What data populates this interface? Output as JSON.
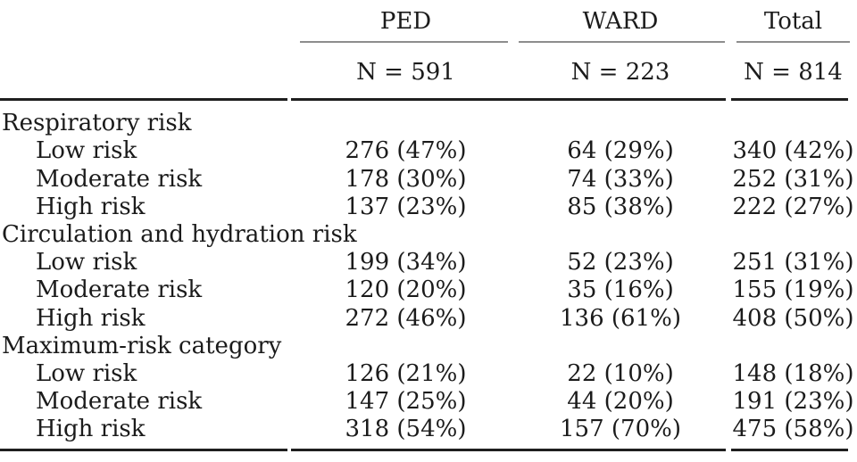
{
  "table": {
    "columns": [
      {
        "label": "PED",
        "n": "N = 591"
      },
      {
        "label": "WARD",
        "n": "N = 223"
      },
      {
        "label": "Total",
        "n": "N = 814"
      }
    ],
    "sections": [
      {
        "header": "Respiratory risk",
        "rows": [
          {
            "label": "Low risk",
            "values": [
              "276 (47%)",
              "64 (29%)",
              "340 (42%)"
            ]
          },
          {
            "label": "Moderate risk",
            "values": [
              "178 (30%)",
              "74 (33%)",
              "252 (31%)"
            ]
          },
          {
            "label": "High risk",
            "values": [
              "137 (23%)",
              "85 (38%)",
              "222 (27%)"
            ]
          }
        ]
      },
      {
        "header": "Circulation and hydration risk",
        "rows": [
          {
            "label": "Low risk",
            "values": [
              "199 (34%)",
              "52 (23%)",
              "251 (31%)"
            ]
          },
          {
            "label": "Moderate risk",
            "values": [
              "120 (20%)",
              "35 (16%)",
              "155 (19%)"
            ]
          },
          {
            "label": "High risk",
            "values": [
              "272 (46%)",
              "136 (61%)",
              "408 (50%)"
            ]
          }
        ]
      },
      {
        "header": "Maximum-risk category",
        "rows": [
          {
            "label": "Low risk",
            "values": [
              "126 (21%)",
              "22 (10%)",
              "148 (18%)"
            ]
          },
          {
            "label": "Moderate risk",
            "values": [
              "147 (25%)",
              "44 (20%)",
              "191 (23%)"
            ]
          },
          {
            "label": "High risk",
            "values": [
              "318 (54%)",
              "157 (70%)",
              "475 (58%)"
            ]
          }
        ]
      }
    ]
  },
  "colors": {
    "text": "#1b1b1b",
    "rule": "#1f1f1f",
    "column_underline": "#8d8d8d",
    "background": "#ffffff"
  }
}
